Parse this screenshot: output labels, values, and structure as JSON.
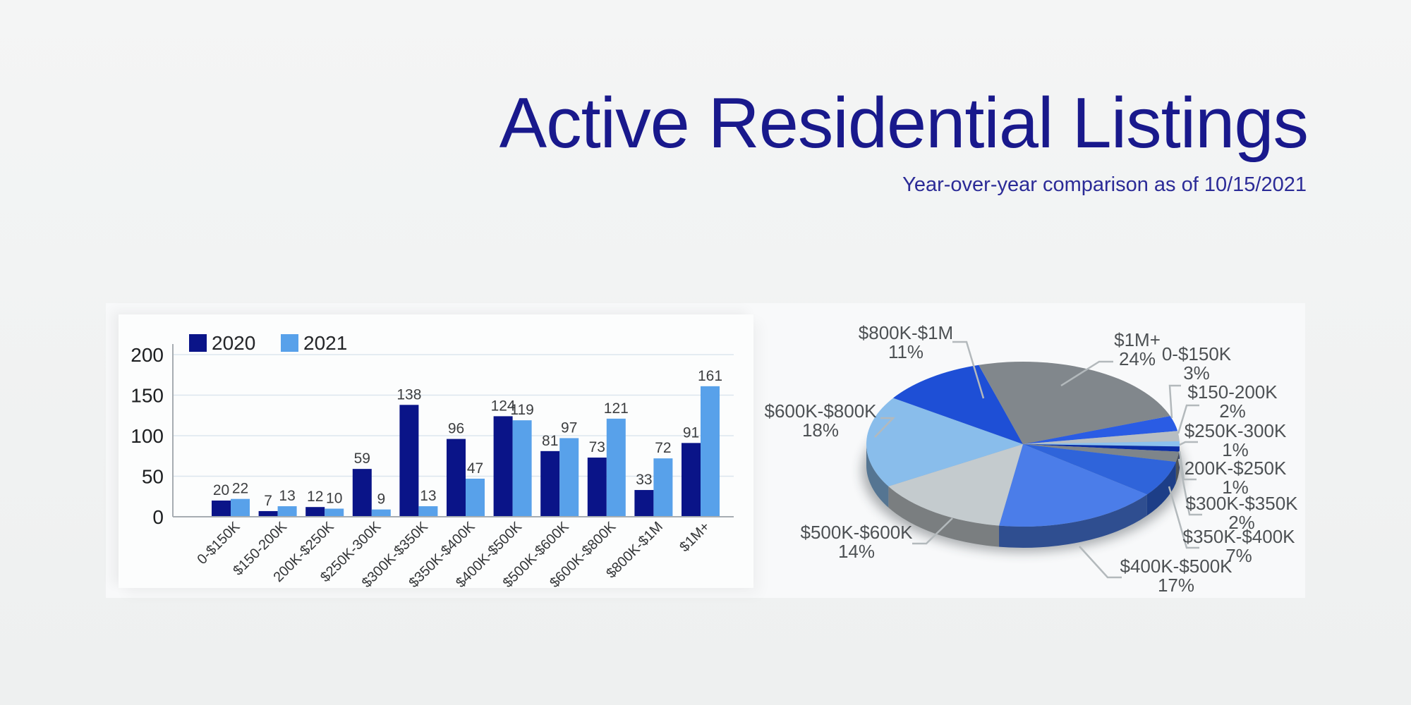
{
  "header": {
    "title": "Active Residential Listings",
    "subtitle": "Year-over-year comparison as of 10/15/2021"
  },
  "colors": {
    "title_navy": "#19198c",
    "subtitle_navy": "#2b2b97",
    "background": "#eff1f1",
    "panel": "#f8f9fa",
    "bar_2020": "#0a1488",
    "bar_2021": "#58a1ea",
    "grid_line": "#dce6ee",
    "axis_line": "#a7adb2",
    "value_label_text": "#3c3e40",
    "pie_label_text": "#4d5154",
    "leader_line": "#b3b9bc"
  },
  "chart_data": [
    {
      "type": "bar",
      "title": "",
      "categories": [
        "0-$150K",
        "$150-200K",
        "200K-$250K",
        "$250K-300K",
        "$300K-$350K",
        "$350K-$400K",
        "$400K-$500K",
        "$500K-$600K",
        "$600K-$800K",
        "$800K-$1M",
        "$1M+"
      ],
      "series": [
        {
          "name": "2020",
          "color": "#0a1488",
          "values": [
            20,
            7,
            12,
            59,
            138,
            96,
            124,
            81,
            73,
            33,
            91
          ]
        },
        {
          "name": "2021",
          "color": "#58a1ea",
          "values": [
            22,
            13,
            10,
            9,
            13,
            47,
            119,
            97,
            121,
            72,
            161
          ]
        }
      ],
      "ylabel": "",
      "xlabel": "",
      "ylim": [
        0,
        200
      ],
      "yticks": [
        0,
        50,
        100,
        150,
        200
      ],
      "grid": true,
      "value_labels_shown": true,
      "legend_position": "top-left"
    },
    {
      "type": "pie",
      "style": "3d",
      "start_angle_deg_cw_from_east": -20,
      "labels": [
        "0-$150K",
        "$150-200K",
        "$250K-300K",
        "200K-$250K",
        "$300K-$350K",
        "$350K-$400K",
        "$400K-$500K",
        "$500K-$600K",
        "$600K-$800K",
        "$800K-$1M",
        "$1M+"
      ],
      "values_pct": [
        3,
        2,
        1,
        1,
        2,
        7,
        17,
        14,
        18,
        11,
        24
      ],
      "colors": [
        "#2a5ce4",
        "#b7bec2",
        "#8cc1ee",
        "#0c2fa6",
        "#7e858a",
        "#2f64da",
        "#4b7de9",
        "#c4cbce",
        "#89bdeb",
        "#1e4fd6",
        "#81878c"
      ]
    }
  ]
}
